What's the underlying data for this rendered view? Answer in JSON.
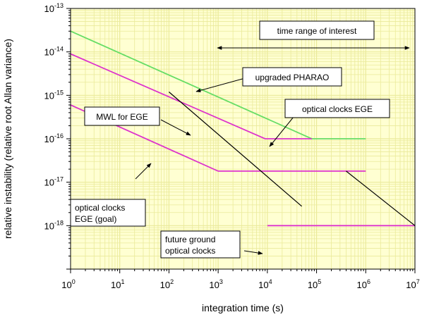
{
  "chart_data": {
    "type": "line",
    "xlabel": "integration time (s)",
    "ylabel": "relative instability (relative root Allan variance)",
    "x_scale": "log",
    "y_scale": "log",
    "xlim": [
      1,
      10000000
    ],
    "ylim": [
      1e-19,
      1e-13
    ],
    "x_ticks": [
      {
        "base": "10",
        "exp": "0"
      },
      {
        "base": "10",
        "exp": "1"
      },
      {
        "base": "10",
        "exp": "2"
      },
      {
        "base": "10",
        "exp": "3"
      },
      {
        "base": "10",
        "exp": "4"
      },
      {
        "base": "10",
        "exp": "5"
      },
      {
        "base": "10",
        "exp": "6"
      },
      {
        "base": "10",
        "exp": "7"
      }
    ],
    "y_ticks": [
      {
        "base": "10",
        "exp": "-13"
      },
      {
        "base": "10",
        "exp": "-14"
      },
      {
        "base": "10",
        "exp": "-15"
      },
      {
        "base": "10",
        "exp": "-16"
      },
      {
        "base": "10",
        "exp": "-17"
      },
      {
        "base": "10",
        "exp": "-18"
      }
    ],
    "grid": true,
    "background": "#ffffd2",
    "grid_color": "#eaea9a",
    "series": [
      {
        "color": "#66dd66",
        "x": [
          1,
          80000,
          1000000
        ],
        "y": [
          3e-14,
          1e-16,
          1e-16
        ]
      },
      {
        "color": "#dd33cc",
        "x": [
          1,
          9000,
          80000
        ],
        "y": [
          9e-15,
          1e-16,
          1e-16
        ]
      },
      {
        "color": "#dd33cc",
        "x": [
          1,
          1000,
          1000000
        ],
        "y": [
          6e-16,
          1.8e-17,
          1.8e-17
        ]
      },
      {
        "color": "#dd33cc",
        "x": [
          10000,
          10000000
        ],
        "y": [
          1e-18,
          1e-18
        ]
      },
      {
        "color": "#000000",
        "x": [
          100,
          50000
        ],
        "y": [
          1.2e-15,
          2.8e-18
        ]
      },
      {
        "color": "#000000",
        "x": [
          400000,
          10000000
        ],
        "y": [
          1.8e-17,
          1e-18
        ]
      }
    ],
    "annotations": [
      {
        "text": [
          "time range of interest"
        ],
        "boxed": true
      },
      {
        "text": [
          "upgraded PHARAO"
        ],
        "boxed": true
      },
      {
        "text": [
          "MWL for EGE"
        ],
        "boxed": true
      },
      {
        "text": [
          "optical clocks EGE"
        ],
        "boxed": true
      },
      {
        "text": [
          "optical  clocks",
          "EGE (goal)"
        ],
        "boxed": true
      },
      {
        "text": [
          "future ground",
          "optical clocks"
        ],
        "boxed": true
      }
    ]
  }
}
